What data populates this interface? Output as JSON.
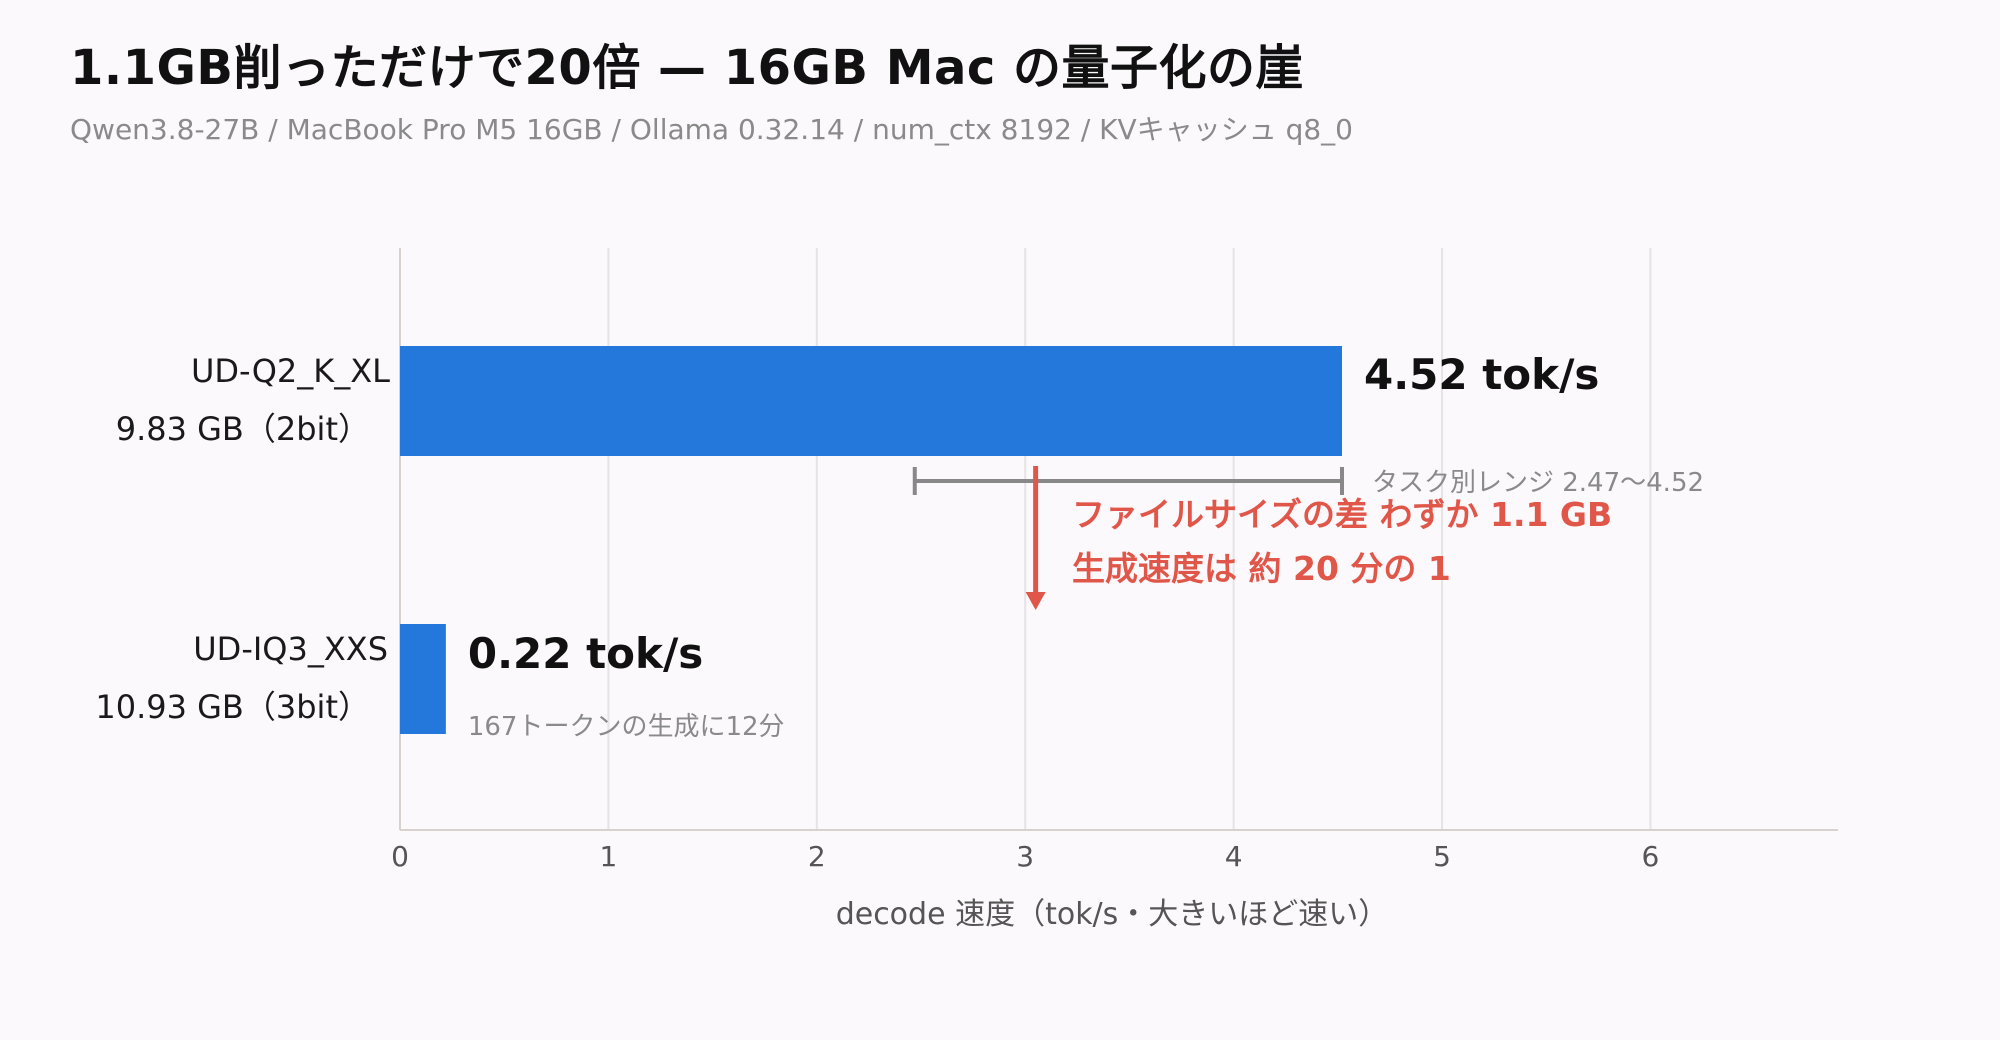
{
  "title": "1.1GB削っただけで20倍 — 16GB Mac の量子化の崖",
  "subtitle": "Qwen3.8-27B / MacBook Pro M5 16GB / Ollama 0.32.14 / num_ctx 8192 / KVキャッシュ q8_0",
  "colors": {
    "bar": "#2477db",
    "annotation": "#e0574a",
    "range": "#888888",
    "grid": "#e6e3e6",
    "axis": "#d7d2cd",
    "muted": "#8a8a8a"
  },
  "chart_data": {
    "type": "bar",
    "orientation": "horizontal",
    "categories": [
      {
        "name": "UD-Q2_K_XL",
        "detail": "9.83 GB（2bit）"
      },
      {
        "name": "UD-IQ3_XXS",
        "detail": "10.93 GB（3bit）"
      }
    ],
    "values": [
      4.52,
      0.22
    ],
    "value_labels": [
      "4.52 tok/s",
      "0.22 tok/s"
    ],
    "notes": [
      "",
      "167トークンの生成に12分"
    ],
    "xlabel": "decode 速度（tok/s・大きいほど速い）",
    "xlim": [
      0,
      6.9
    ],
    "xticks": [
      0,
      1,
      2,
      3,
      4,
      5,
      6
    ],
    "grid": true,
    "range": {
      "from": 2.47,
      "to": 4.52,
      "label": "タスク別レンジ 2.47〜4.52"
    },
    "annotation": {
      "x": 3.05,
      "lines": [
        "ファイルサイズの差 わずか 1.1 GB",
        "生成速度は 約 20 分の 1"
      ]
    }
  }
}
